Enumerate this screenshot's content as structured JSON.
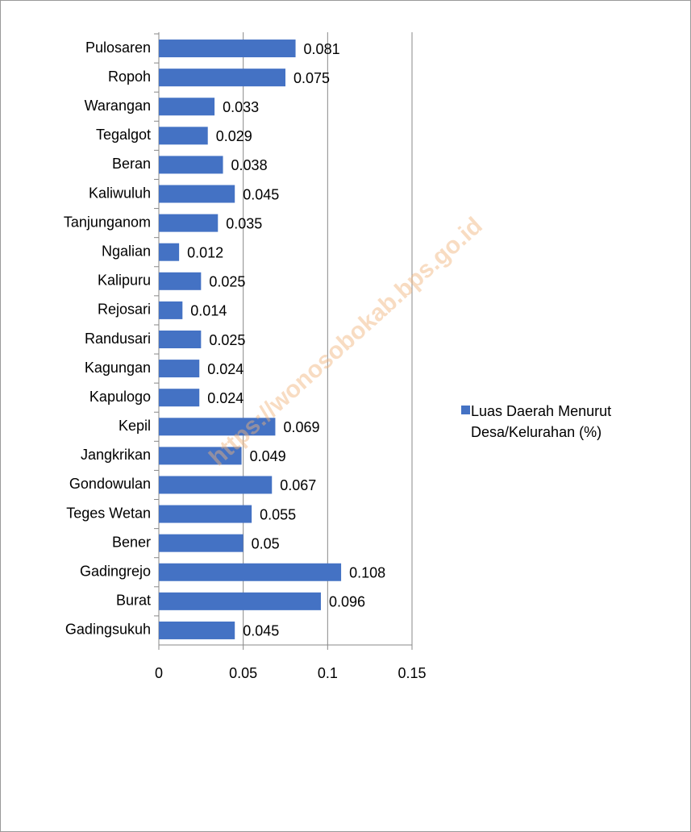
{
  "chart_data": {
    "type": "bar",
    "orientation": "horizontal",
    "categories": [
      "Pulosaren",
      "Ropoh",
      "Warangan",
      "Tegalgot",
      "Beran",
      "Kaliwuluh",
      "Tanjunganom",
      "Ngalian",
      "Kalipuru",
      "Rejosari",
      "Randusari",
      "Kagungan",
      "Kapulogo",
      "Kepil",
      "Jangkrikan",
      "Gondowulan",
      "Teges Wetan",
      "Bener",
      "Gadingrejo",
      "Burat",
      "Gadingsukuh"
    ],
    "series": [
      {
        "name": "Luas Daerah Menurut Desa/Kelurahan (%)",
        "color": "#4472c4",
        "values": [
          0.081,
          0.075,
          0.033,
          0.029,
          0.038,
          0.045,
          0.035,
          0.012,
          0.025,
          0.014,
          0.025,
          0.024,
          0.024,
          0.069,
          0.049,
          0.067,
          0.055,
          0.05,
          0.108,
          0.096,
          0.045
        ]
      }
    ],
    "xlim": [
      0,
      0.15
    ],
    "xticks": [
      0,
      0.05,
      0.1,
      0.15
    ],
    "grid": true,
    "legend": "right",
    "watermark": "https://wonosobokab.bps.go.id"
  }
}
